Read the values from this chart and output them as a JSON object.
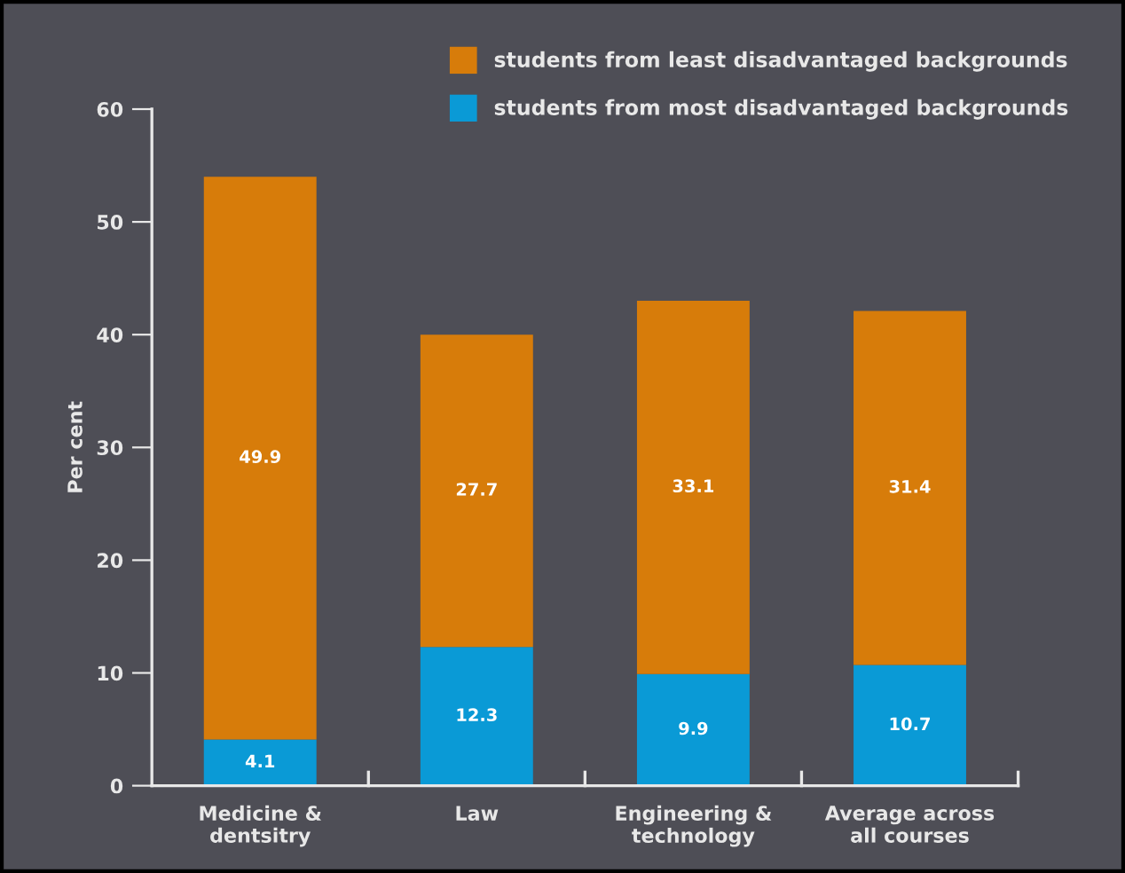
{
  "chart_data": {
    "type": "bar",
    "stacked": true,
    "ylabel": "Per cent",
    "categories": [
      "Medicine &\ndentsitry",
      "Law",
      "Engineering &\ntechnology",
      "Average across\nall courses"
    ],
    "series": [
      {
        "name": "students from most disadvantaged backgrounds",
        "color": "#0a9ad6",
        "values": [
          4.1,
          12.3,
          9.9,
          10.7
        ]
      },
      {
        "name": "students from least disadvantaged backgrounds",
        "color": "#d77c0a",
        "values": [
          49.9,
          27.7,
          33.1,
          31.4
        ]
      }
    ],
    "ylim": [
      0,
      60
    ],
    "yticks": [
      0,
      10,
      20,
      30,
      40,
      50,
      60
    ],
    "data_labels": true,
    "grid": false,
    "legend": "top right"
  }
}
